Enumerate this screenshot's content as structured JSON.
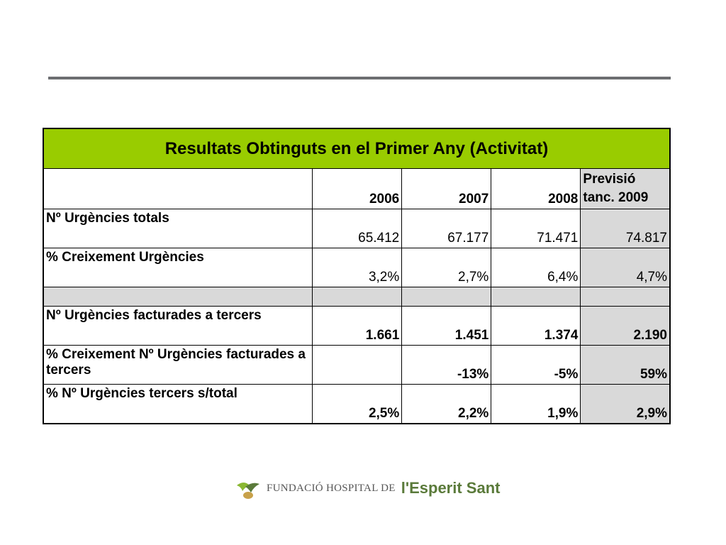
{
  "table": {
    "title": "Resultats Obtinguts en el Primer Any (Activitat)",
    "header": [
      "2006",
      "2007",
      "2008",
      "Previsió tanc. 2009"
    ],
    "rows": [
      {
        "label": "Nº Urgències totals",
        "values": [
          "65.412",
          "67.177",
          "71.471",
          "74.817"
        ]
      },
      {
        "label": "% Creixement Urgències",
        "values": [
          "3,2%",
          "2,7%",
          "6,4%",
          "4,7%"
        ]
      },
      {
        "label": "Nº Urgències facturades a tercers",
        "values": [
          "1.661",
          "1.451",
          "1.374",
          "2.190"
        ]
      },
      {
        "label": "% Creixement Nº Urgències facturades a tercers",
        "values": [
          null,
          "-13%",
          "-5%",
          "59%"
        ]
      },
      {
        "label": "% Nº Urgències tercers s/total",
        "values": [
          "2,5%",
          "2,2%",
          "1,9%",
          "2,9%"
        ]
      }
    ]
  },
  "logo": {
    "prefix": "FUNDACIÓ HOSPITAL DE",
    "name": "l'Esperit Sant"
  }
}
